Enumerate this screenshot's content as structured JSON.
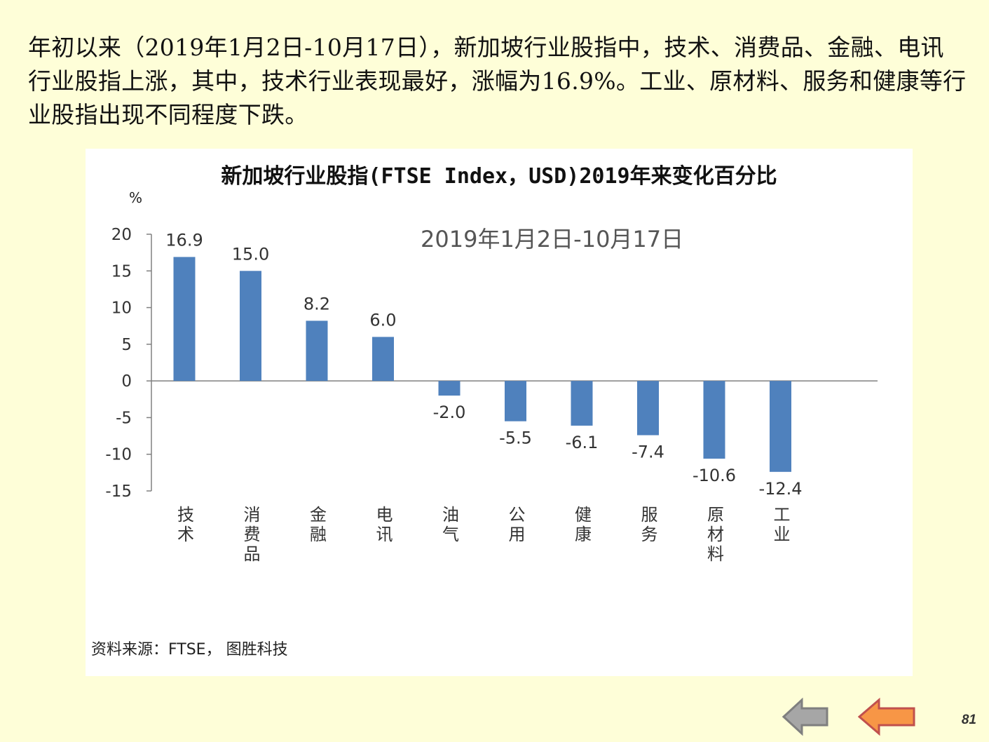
{
  "intro_text": "年初以来（2019年1月2日-10月17日），新加坡行业股指中，技术、消费品、金融、电讯行业股指上涨，其中，技术行业表现最好，涨幅为16.9%。工业、原材料、服务和健康等行业股指出现不同程度下跌。",
  "chart_data": {
    "type": "bar",
    "title": "新加坡行业股指(FTSE Index，USD)2019年来变化百分比",
    "ylabel": "%",
    "annotation": "2019年1月2日-10月17日",
    "categories": [
      "技术",
      "消费品",
      "金融",
      "电讯",
      "油气",
      "公用",
      "健康",
      "服务",
      "原材料",
      "工业"
    ],
    "values": [
      16.9,
      15.0,
      8.2,
      6.0,
      -2.0,
      -5.5,
      -6.1,
      -7.4,
      -10.6,
      -12.4
    ],
    "value_labels": [
      "16.9",
      "15.0",
      "8.2",
      "6.0",
      "-2.0",
      "-5.5",
      "-6.1",
      "-7.4",
      "-10.6",
      "-12.4"
    ],
    "ylim": [
      -15,
      20
    ],
    "yticks": [
      20,
      15,
      10,
      5,
      0,
      -5,
      -10,
      -15
    ],
    "bar_color": "#4f81bd",
    "grid": false,
    "source": "资料来源：FTSE，  图胜科技"
  },
  "nav": {
    "back_color": "#a6a6a6",
    "forward_color": "#f79646"
  },
  "page_number": "81"
}
